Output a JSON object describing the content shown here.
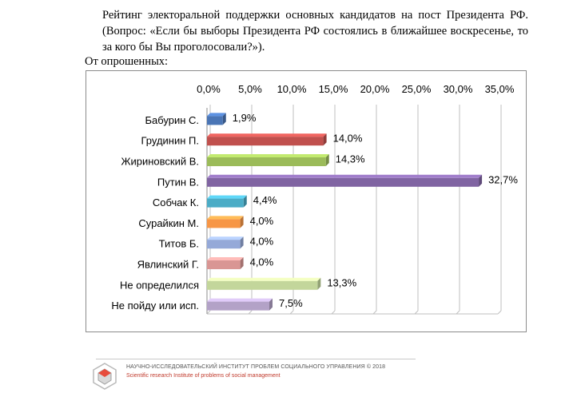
{
  "intro_text": "Рейтинг электоральной поддержки основных кандидатов на пост Президента РФ. (Вопрос: «Если бы выборы Президента РФ состоялись в ближайшее воскресенье, то за кого бы Вы проголосовали?»).",
  "subtitle": "От опрошенных:",
  "footer": {
    "title": "НАУЧНО-ИССЛЕДОВАТЕЛЬСКИЙ ИНСТИТУТ ПРОБЛЕМ СОЦИАЛЬНОГО УПРАВЛЕНИЯ  © 2018",
    "subtitle": "Scientific research Institute of problems of social management"
  },
  "chart_data": {
    "type": "bar",
    "orientation": "horizontal",
    "categories": [
      "Бабурин С.",
      "Грудинин П.",
      "Жириновский В.",
      "Путин В.",
      "Собчак К.",
      "Сурайкин М.",
      "Титов Б.",
      "Явлинский Г.",
      "Не определился",
      "Не пойду или исп."
    ],
    "values": [
      1.9,
      14.0,
      14.3,
      32.7,
      4.4,
      4.0,
      4.0,
      4.0,
      13.3,
      7.5
    ],
    "value_labels": [
      "1,9%",
      "14,0%",
      "14,3%",
      "32,7%",
      "4,4%",
      "4,0%",
      "4,0%",
      "4,0%",
      "13,3%",
      "7,5%"
    ],
    "colors": [
      "#4a75b5",
      "#c0504d",
      "#9bbb59",
      "#8064a2",
      "#4bacc6",
      "#f79646",
      "#95a9d8",
      "#d99694",
      "#c3d69b",
      "#b3a2c7"
    ],
    "xlim": [
      0,
      35
    ],
    "x_ticks": [
      0,
      5,
      10,
      15,
      20,
      25,
      30,
      35
    ],
    "x_tick_labels": [
      "0,0%",
      "5,0%",
      "10,0%",
      "15,0%",
      "20,0%",
      "25,0%",
      "30,0%",
      "35,0%"
    ],
    "x_axis_position": "top",
    "grid": true
  }
}
